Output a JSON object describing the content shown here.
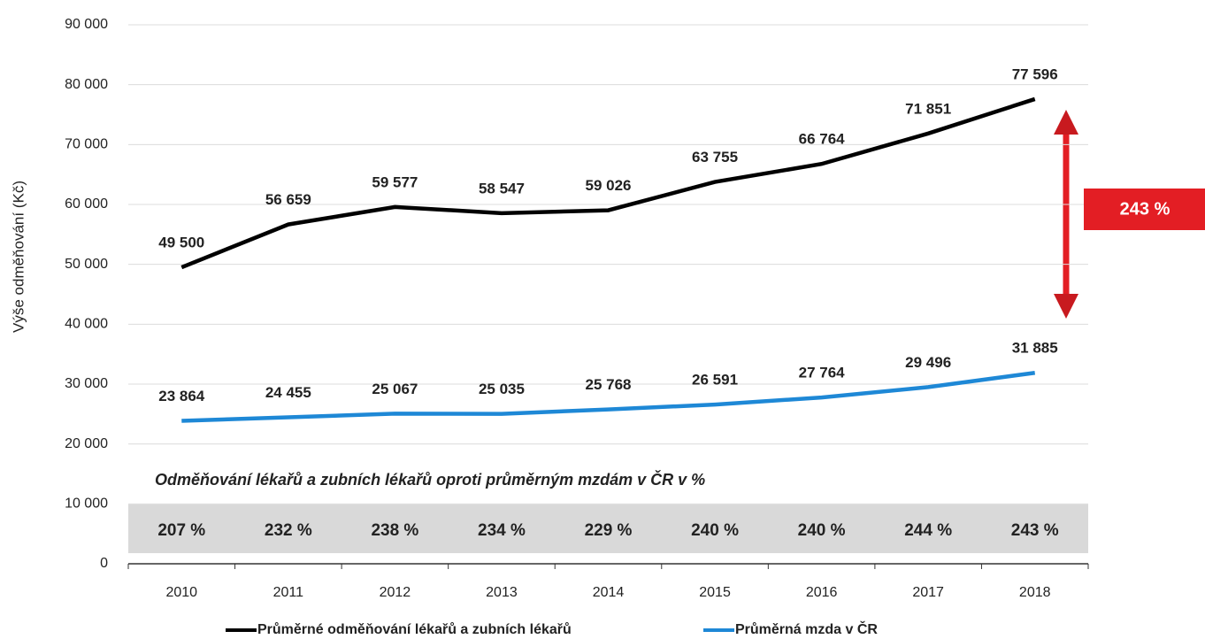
{
  "chart_data": {
    "type": "line",
    "y_label": "Výše odměňování (Kč)",
    "categories": [
      "2010",
      "2011",
      "2012",
      "2013",
      "2014",
      "2015",
      "2016",
      "2017",
      "2018"
    ],
    "series": [
      {
        "name": "Průměrné odměňování lékařů a zubních lékařů",
        "color": "#000000",
        "values": [
          49500,
          56659,
          59577,
          58547,
          59026,
          63755,
          66764,
          71851,
          77596
        ],
        "value_labels": [
          "49 500",
          "56 659",
          "59 577",
          "58 547",
          "59 026",
          "63 755",
          "66 764",
          "71 851",
          "77 596"
        ]
      },
      {
        "name": "Průměrná mzda v ČR",
        "color": "#1e88d6",
        "values": [
          23864,
          24455,
          25067,
          25035,
          25768,
          26591,
          27764,
          29496,
          31885
        ],
        "value_labels": [
          "23 864",
          "24 455",
          "25 067",
          "25 035",
          "25 768",
          "26 591",
          "27 764",
          "29 496",
          "31 885"
        ]
      }
    ],
    "ylim": [
      0,
      90000
    ],
    "yticks": [
      0,
      {
        "value": 10000,
        "label": "10 000"
      },
      {
        "value": 20000,
        "label": "20 000"
      },
      {
        "value": 30000,
        "label": "30 000"
      },
      {
        "value": 40000,
        "label": "40 000"
      },
      {
        "value": 50000,
        "label": "50 000"
      },
      {
        "value": 60000,
        "label": "60 000"
      },
      {
        "value": 70000,
        "label": "70 000"
      },
      {
        "value": 80000,
        "label": "80 000"
      },
      {
        "value": 90000,
        "label": "90 000"
      }
    ],
    "grid": true,
    "subtitle": "Odměňování lékařů a zubních lékařů oproti průměrným mzdám v ČR v %",
    "ratios": {
      "values": [
        207,
        232,
        238,
        234,
        229,
        240,
        240,
        244,
        243
      ],
      "value_labels": [
        "207 %",
        "232 %",
        "238 %",
        "234 %",
        "229 %",
        "240 %",
        "240 %",
        "244 %",
        "243 %"
      ]
    },
    "callout": {
      "value": 243,
      "label": "243 %"
    },
    "callout_color": "#e31e24"
  }
}
